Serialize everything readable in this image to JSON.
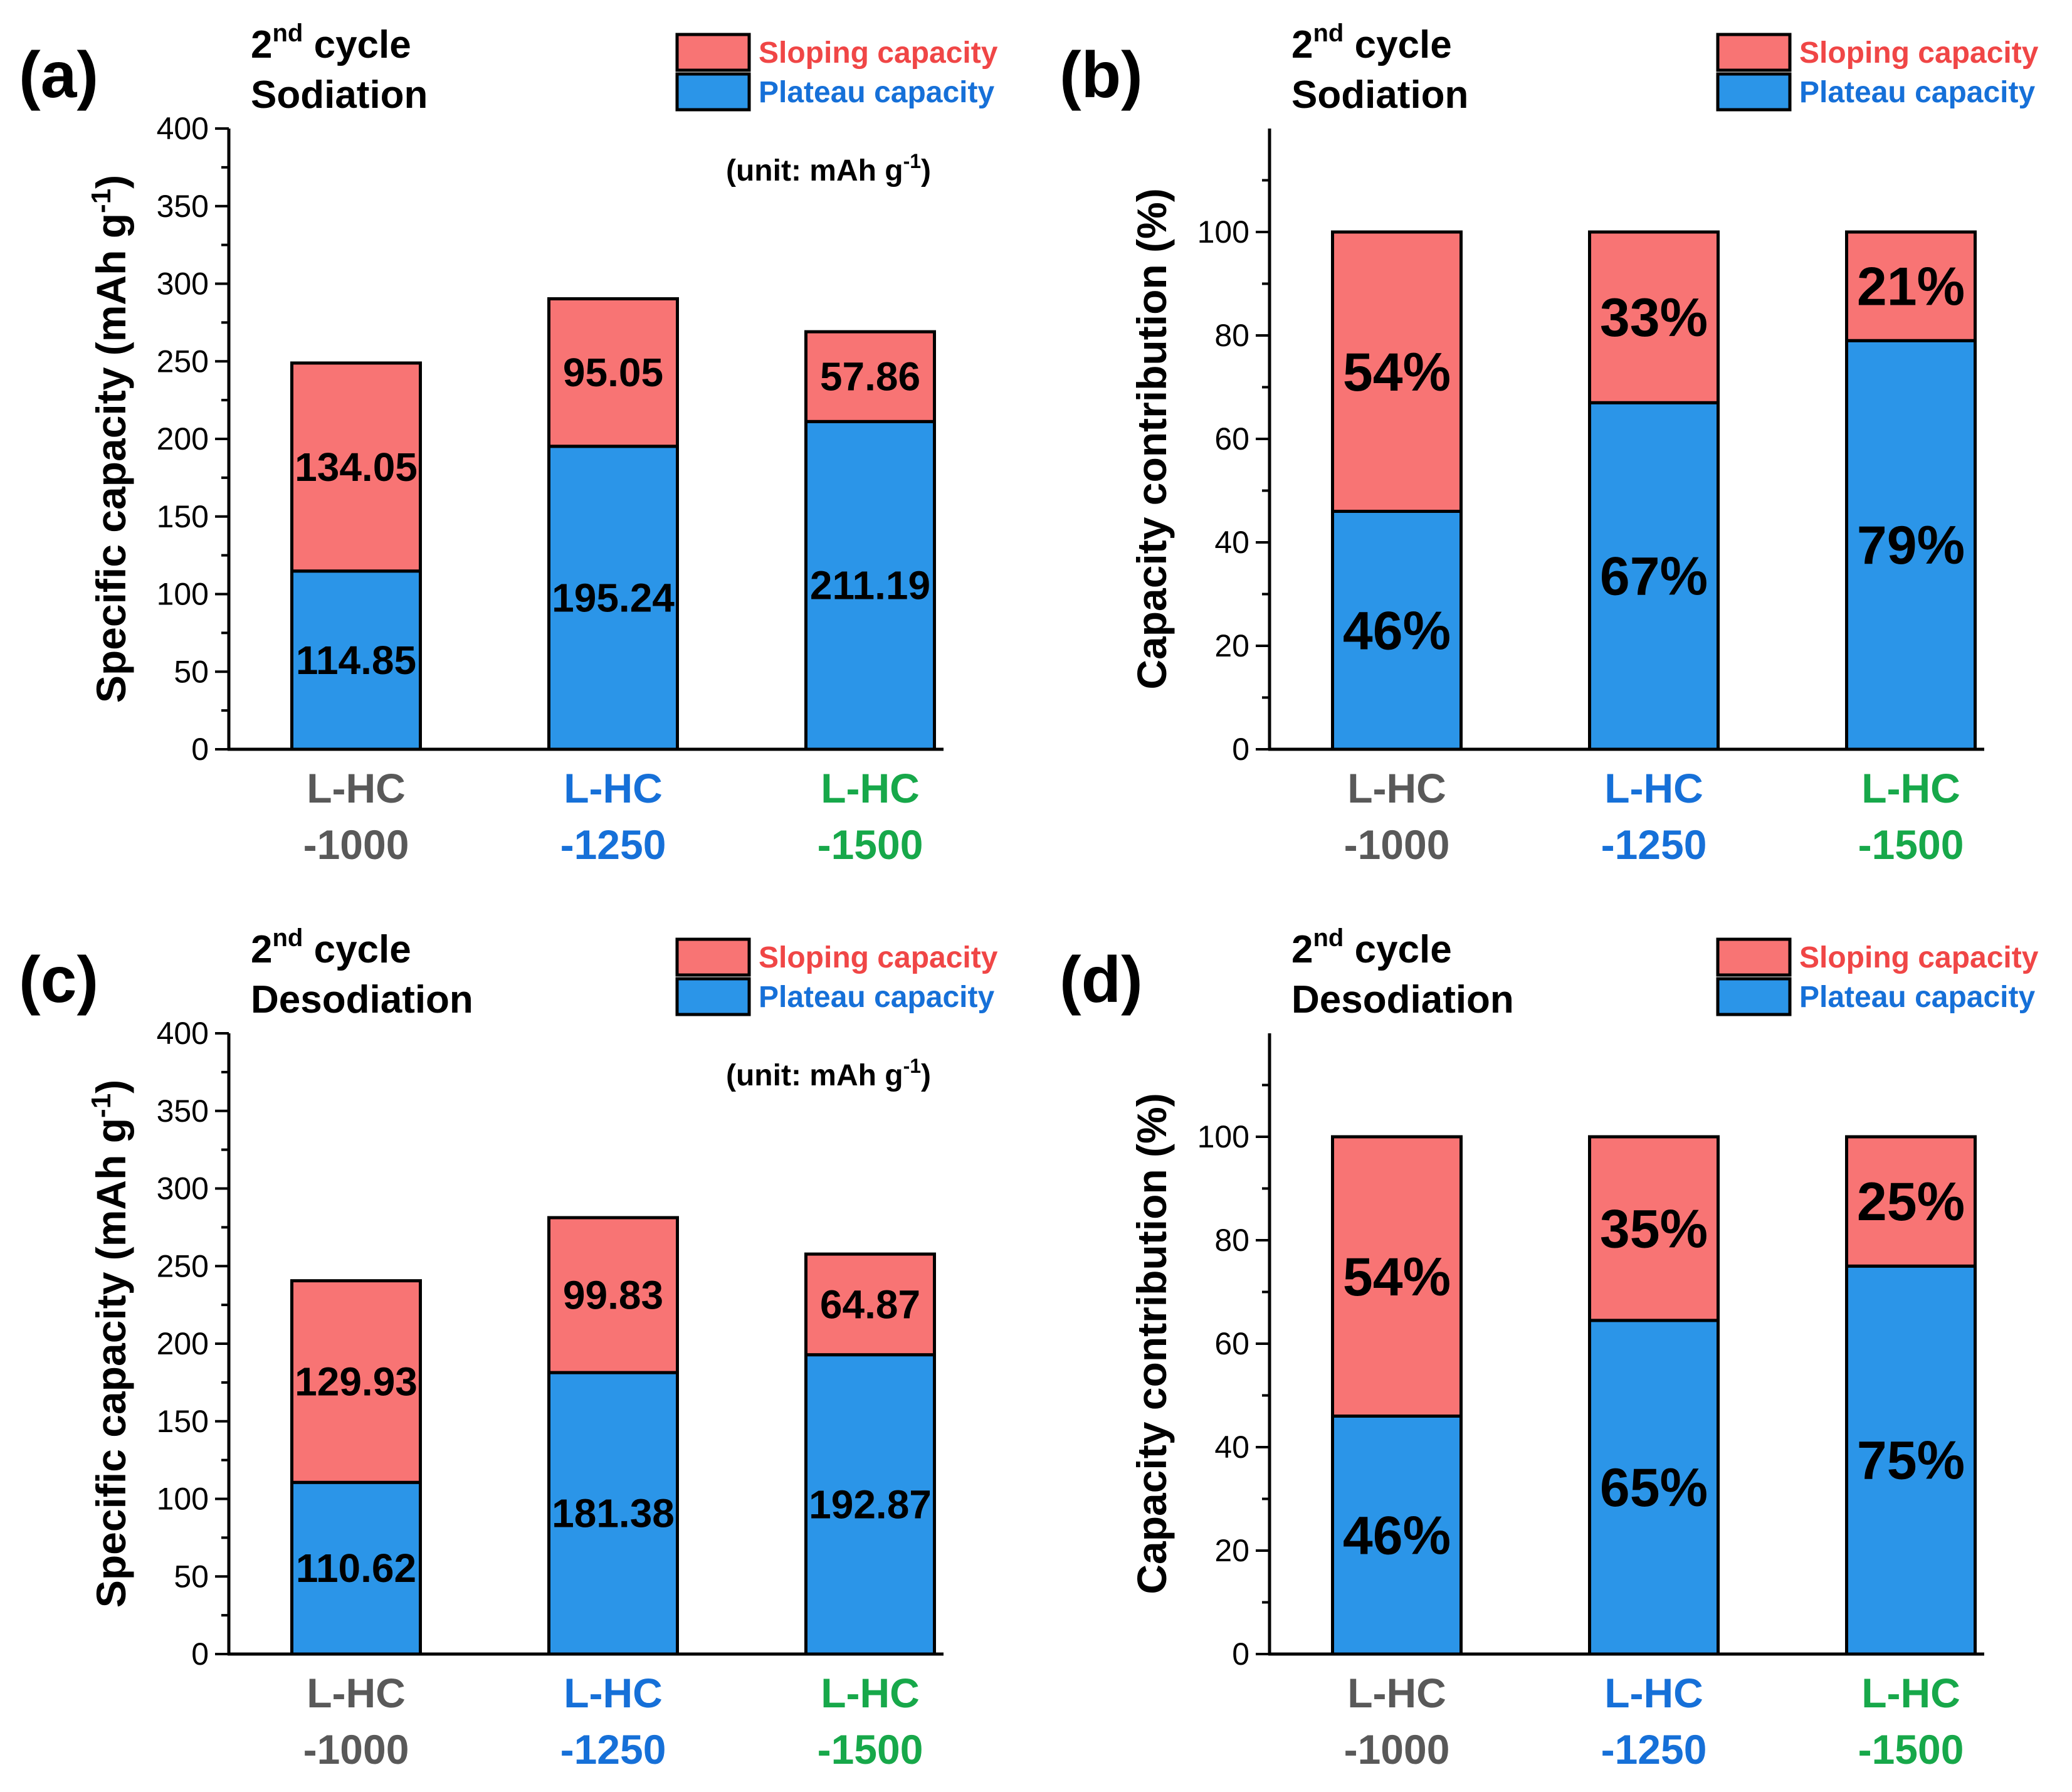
{
  "colors": {
    "sloping": "#f87474",
    "plateau": "#2b95e8",
    "cat_1000": "#595959",
    "cat_1250": "#1670d8",
    "cat_1500": "#17a84a",
    "legend_sloping_text": "#f04646",
    "legend_plateau_text": "#1670d8"
  },
  "chart_data": [
    {
      "id": "a",
      "panel_label": "(a)",
      "type": "bar",
      "stacked": true,
      "title": {
        "cycle_number": "2",
        "cycle_suffix": "nd",
        "cycle_word": "cycle",
        "process": "Sodiation"
      },
      "ylabel": "Specific capacity (mAh g",
      "ylabel_sup": "-1",
      "ylabel_close": ")",
      "ylim": [
        0,
        400
      ],
      "yticks": [
        0,
        50,
        100,
        150,
        200,
        250,
        300,
        350,
        400
      ],
      "categories": [
        {
          "line1": "L-HC",
          "line2": "-1000"
        },
        {
          "line1": "L-HC",
          "line2": "-1250"
        },
        {
          "line1": "L-HC",
          "line2": "-1500"
        }
      ],
      "series": [
        {
          "name": "Plateau capacity",
          "values": [
            114.85,
            195.24,
            211.19
          ],
          "labels": [
            "114.85",
            "195.24",
            "211.19"
          ]
        },
        {
          "name": "Sloping capacity",
          "values": [
            134.05,
            95.05,
            57.86
          ],
          "labels": [
            "134.05",
            "95.05",
            "57.86"
          ]
        }
      ],
      "legend": [
        "Sloping capacity",
        "Plateau capacity"
      ],
      "unit_note": {
        "text": "(unit:  mAh g",
        "sup": "-1",
        "close": ")"
      }
    },
    {
      "id": "b",
      "panel_label": "(b)",
      "type": "bar",
      "stacked": true,
      "title": {
        "cycle_number": "2",
        "cycle_suffix": "nd",
        "cycle_word": "cycle",
        "process": "Sodiation"
      },
      "ylabel": "Capacity contribution (%)",
      "ylim": [
        0,
        120
      ],
      "yticks": [
        0,
        20,
        40,
        60,
        80,
        100
      ],
      "categories": [
        {
          "line1": "L-HC",
          "line2": "-1000"
        },
        {
          "line1": "L-HC",
          "line2": "-1250"
        },
        {
          "line1": "L-HC",
          "line2": "-1500"
        }
      ],
      "series": [
        {
          "name": "Plateau capacity",
          "values": [
            46,
            67,
            79
          ],
          "labels": [
            "46%",
            "67%",
            "79%"
          ]
        },
        {
          "name": "Sloping capacity",
          "values": [
            54,
            33,
            21
          ],
          "labels": [
            "54%",
            "33%",
            "21%"
          ]
        }
      ],
      "legend": [
        "Sloping capacity",
        "Plateau capacity"
      ]
    },
    {
      "id": "c",
      "panel_label": "(c)",
      "type": "bar",
      "stacked": true,
      "title": {
        "cycle_number": "2",
        "cycle_suffix": "nd",
        "cycle_word": "cycle",
        "process": "Desodiation"
      },
      "ylabel": "Specific capacity (mAh g",
      "ylabel_sup": "-1",
      "ylabel_close": ")",
      "ylim": [
        0,
        400
      ],
      "yticks": [
        0,
        50,
        100,
        150,
        200,
        250,
        300,
        350,
        400
      ],
      "categories": [
        {
          "line1": "L-HC",
          "line2": "-1000"
        },
        {
          "line1": "L-HC",
          "line2": "-1250"
        },
        {
          "line1": "L-HC",
          "line2": "-1500"
        }
      ],
      "series": [
        {
          "name": "Plateau capacity",
          "values": [
            110.62,
            181.38,
            192.87
          ],
          "labels": [
            "110.62",
            "181.38",
            "192.87"
          ]
        },
        {
          "name": "Sloping capacity",
          "values": [
            129.93,
            99.83,
            64.87
          ],
          "labels": [
            "129.93",
            "99.83",
            "64.87"
          ]
        }
      ],
      "legend": [
        "Sloping capacity",
        "Plateau capacity"
      ],
      "unit_note": {
        "text": "(unit:  mAh g",
        "sup": "-1",
        "close": ")"
      }
    },
    {
      "id": "d",
      "panel_label": "(d)",
      "type": "bar",
      "stacked": true,
      "title": {
        "cycle_number": "2",
        "cycle_suffix": "nd",
        "cycle_word": "cycle",
        "process": "Desodiation"
      },
      "ylabel": "Capacity contribution (%)",
      "ylim": [
        0,
        120
      ],
      "yticks": [
        0,
        20,
        40,
        60,
        80,
        100
      ],
      "categories": [
        {
          "line1": "L-HC",
          "line2": "-1000"
        },
        {
          "line1": "L-HC",
          "line2": "-1250"
        },
        {
          "line1": "L-HC",
          "line2": "-1500"
        }
      ],
      "series": [
        {
          "name": "Plateau capacity",
          "values": [
            46,
            64.5,
            75
          ],
          "labels": [
            "46%",
            "65%",
            "75%"
          ]
        },
        {
          "name": "Sloping capacity",
          "values": [
            54,
            35.5,
            25
          ],
          "labels": [
            "54%",
            "35%",
            "25%"
          ]
        }
      ],
      "legend": [
        "Sloping capacity",
        "Plateau capacity"
      ]
    }
  ]
}
